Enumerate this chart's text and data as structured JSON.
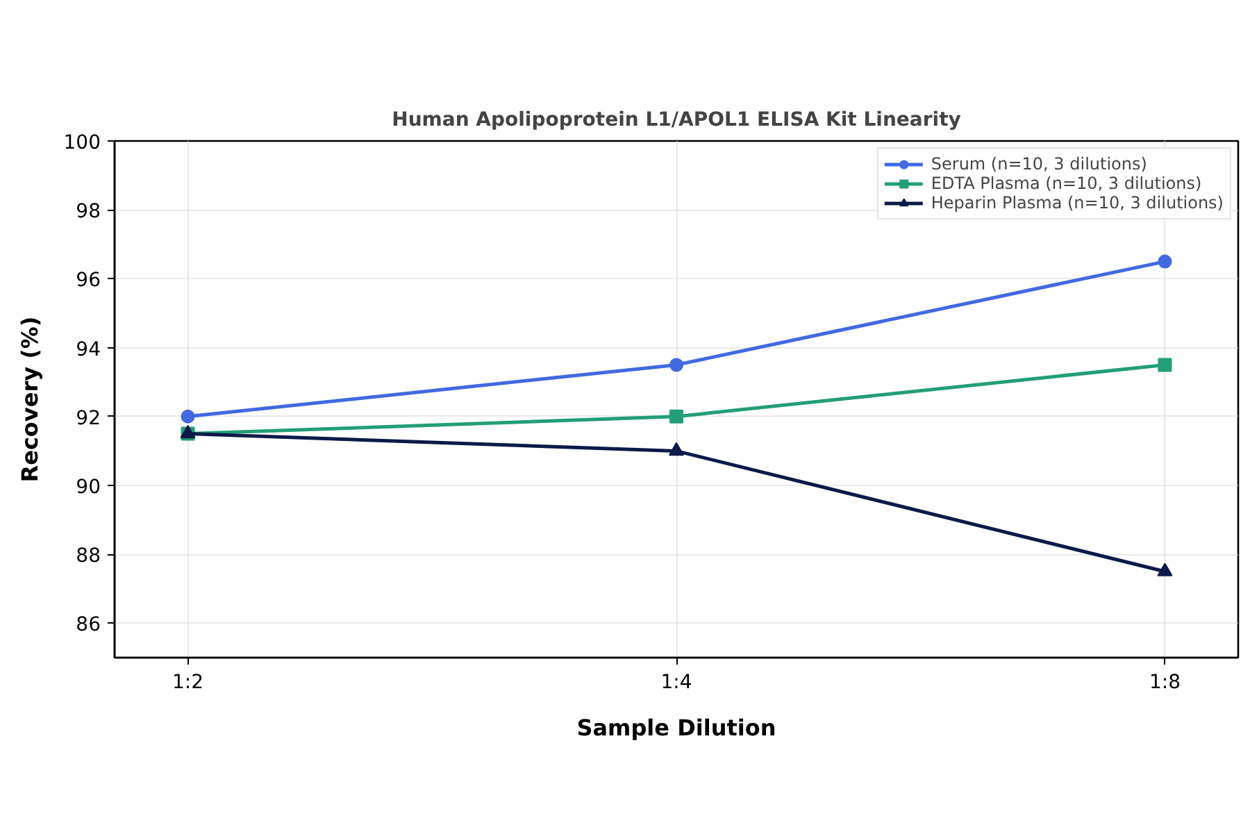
{
  "chart_data": {
    "type": "line",
    "title": "Human Apolipoprotein L1/APOL1 ELISA Kit Linearity",
    "xlabel": "Sample Dilution",
    "ylabel": "Recovery (%)",
    "categories": [
      "1:2",
      "1:4",
      "1:8"
    ],
    "series": [
      {
        "name": "Serum (n=10, 3 dilutions)",
        "color": "#4169e1",
        "marker": "circle",
        "values": [
          92,
          93.5,
          96.5
        ]
      },
      {
        "name": "EDTA Plasma (n=10, 3 dilutions)",
        "color": "#229e78",
        "marker": "square",
        "values": [
          91.5,
          92,
          93.5
        ]
      },
      {
        "name": "Heparin Plasma (n=10, 3 dilutions)",
        "color": "#0b1a48",
        "marker": "triangle",
        "values": [
          91.5,
          91,
          87.5
        ]
      }
    ],
    "ylim": [
      85,
      100
    ],
    "yticks": [
      86,
      88,
      90,
      92,
      94,
      96,
      98,
      100
    ],
    "grid": true,
    "legend": "top right",
    "line_style": "solid"
  }
}
